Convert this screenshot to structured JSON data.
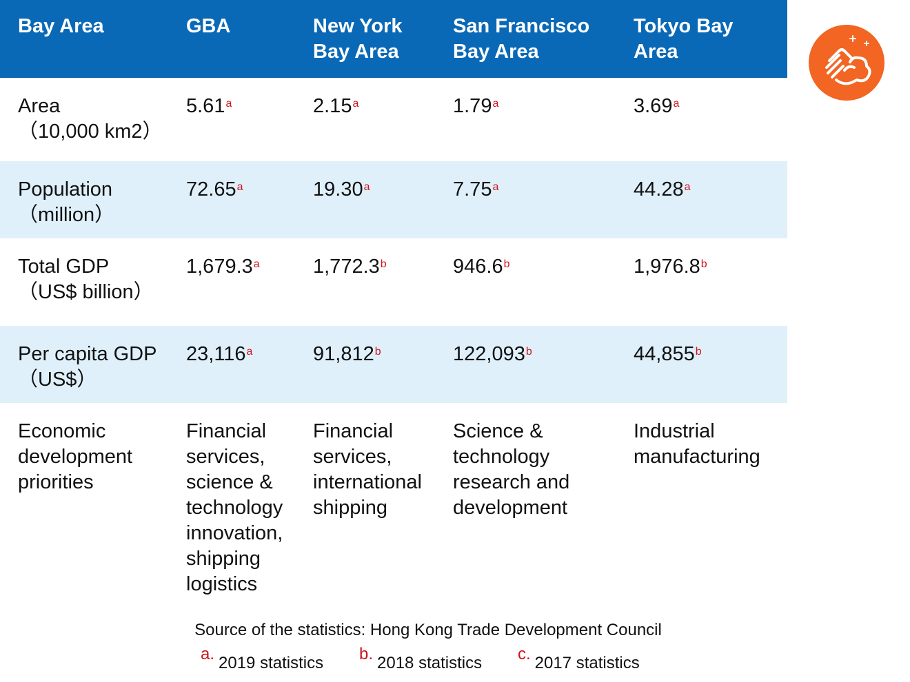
{
  "header": [
    "Bay Area",
    "GBA",
    "New York Bay Area",
    "San Francisco Bay Area",
    "Tokyo Bay Area"
  ],
  "header_lines": [
    [
      "Bay Area"
    ],
    [
      "GBA"
    ],
    [
      "New York",
      "Bay Area"
    ],
    [
      "San Francisco",
      "Bay Area"
    ],
    [
      "Tokyo Bay",
      "Area"
    ]
  ],
  "rows": [
    {
      "label": [
        "Area",
        "（10,000 km2）"
      ],
      "values": [
        {
          "v": "5.61",
          "s": "a"
        },
        {
          "v": "2.15",
          "s": "a"
        },
        {
          "v": "1.79",
          "s": "a"
        },
        {
          "v": "3.69",
          "s": "a"
        }
      ]
    },
    {
      "label": [
        "Population",
        "（million）"
      ],
      "values": [
        {
          "v": "72.65",
          "s": "a"
        },
        {
          "v": "19.30",
          "s": "a"
        },
        {
          "v": "7.75",
          "s": "a"
        },
        {
          "v": "44.28",
          "s": "a"
        }
      ]
    },
    {
      "label": [
        "Total GDP",
        "（US$ billion）"
      ],
      "values": [
        {
          "v": "1,679.3",
          "s": "a"
        },
        {
          "v": "1,772.3",
          "s": "b"
        },
        {
          "v": "946.6",
          "s": "b"
        },
        {
          "v": "1,976.8",
          "s": "b"
        }
      ]
    },
    {
      "label": [
        "Per capita GDP",
        "（US$）"
      ],
      "values": [
        {
          "v": "23,116",
          "s": "a"
        },
        {
          "v": "91,812",
          "s": "b"
        },
        {
          "v": "122,093",
          "s": "b"
        },
        {
          "v": "44,855",
          "s": "b"
        }
      ]
    },
    {
      "label": [
        "Economic",
        "development",
        "priorities"
      ],
      "values": [
        {
          "lines": [
            "Financial",
            "services,",
            "science &",
            "technology",
            "innovation,",
            "shipping",
            "logistics"
          ]
        },
        {
          "lines": [
            "Financial",
            "services,",
            "international",
            "shipping"
          ]
        },
        {
          "lines": [
            "Science &",
            "technology",
            "research and",
            "development"
          ]
        },
        {
          "lines": [
            "Industrial",
            "manufacturing"
          ]
        }
      ]
    }
  ],
  "source": "Source of the statistics: Hong Kong Trade Development Council",
  "legend": [
    {
      "letter": "a.",
      "text": "2019 statistics"
    },
    {
      "letter": "b.",
      "text": "2018 statistics"
    },
    {
      "letter": "c.",
      "text": "2017 statistics"
    }
  ],
  "icon": {
    "name": "clean-hands-icon",
    "color": "#f26522"
  },
  "colors": {
    "header_bg": "#0a69b7",
    "alt_row_bg": "#dff0fa",
    "superscript": "#d0131b"
  }
}
